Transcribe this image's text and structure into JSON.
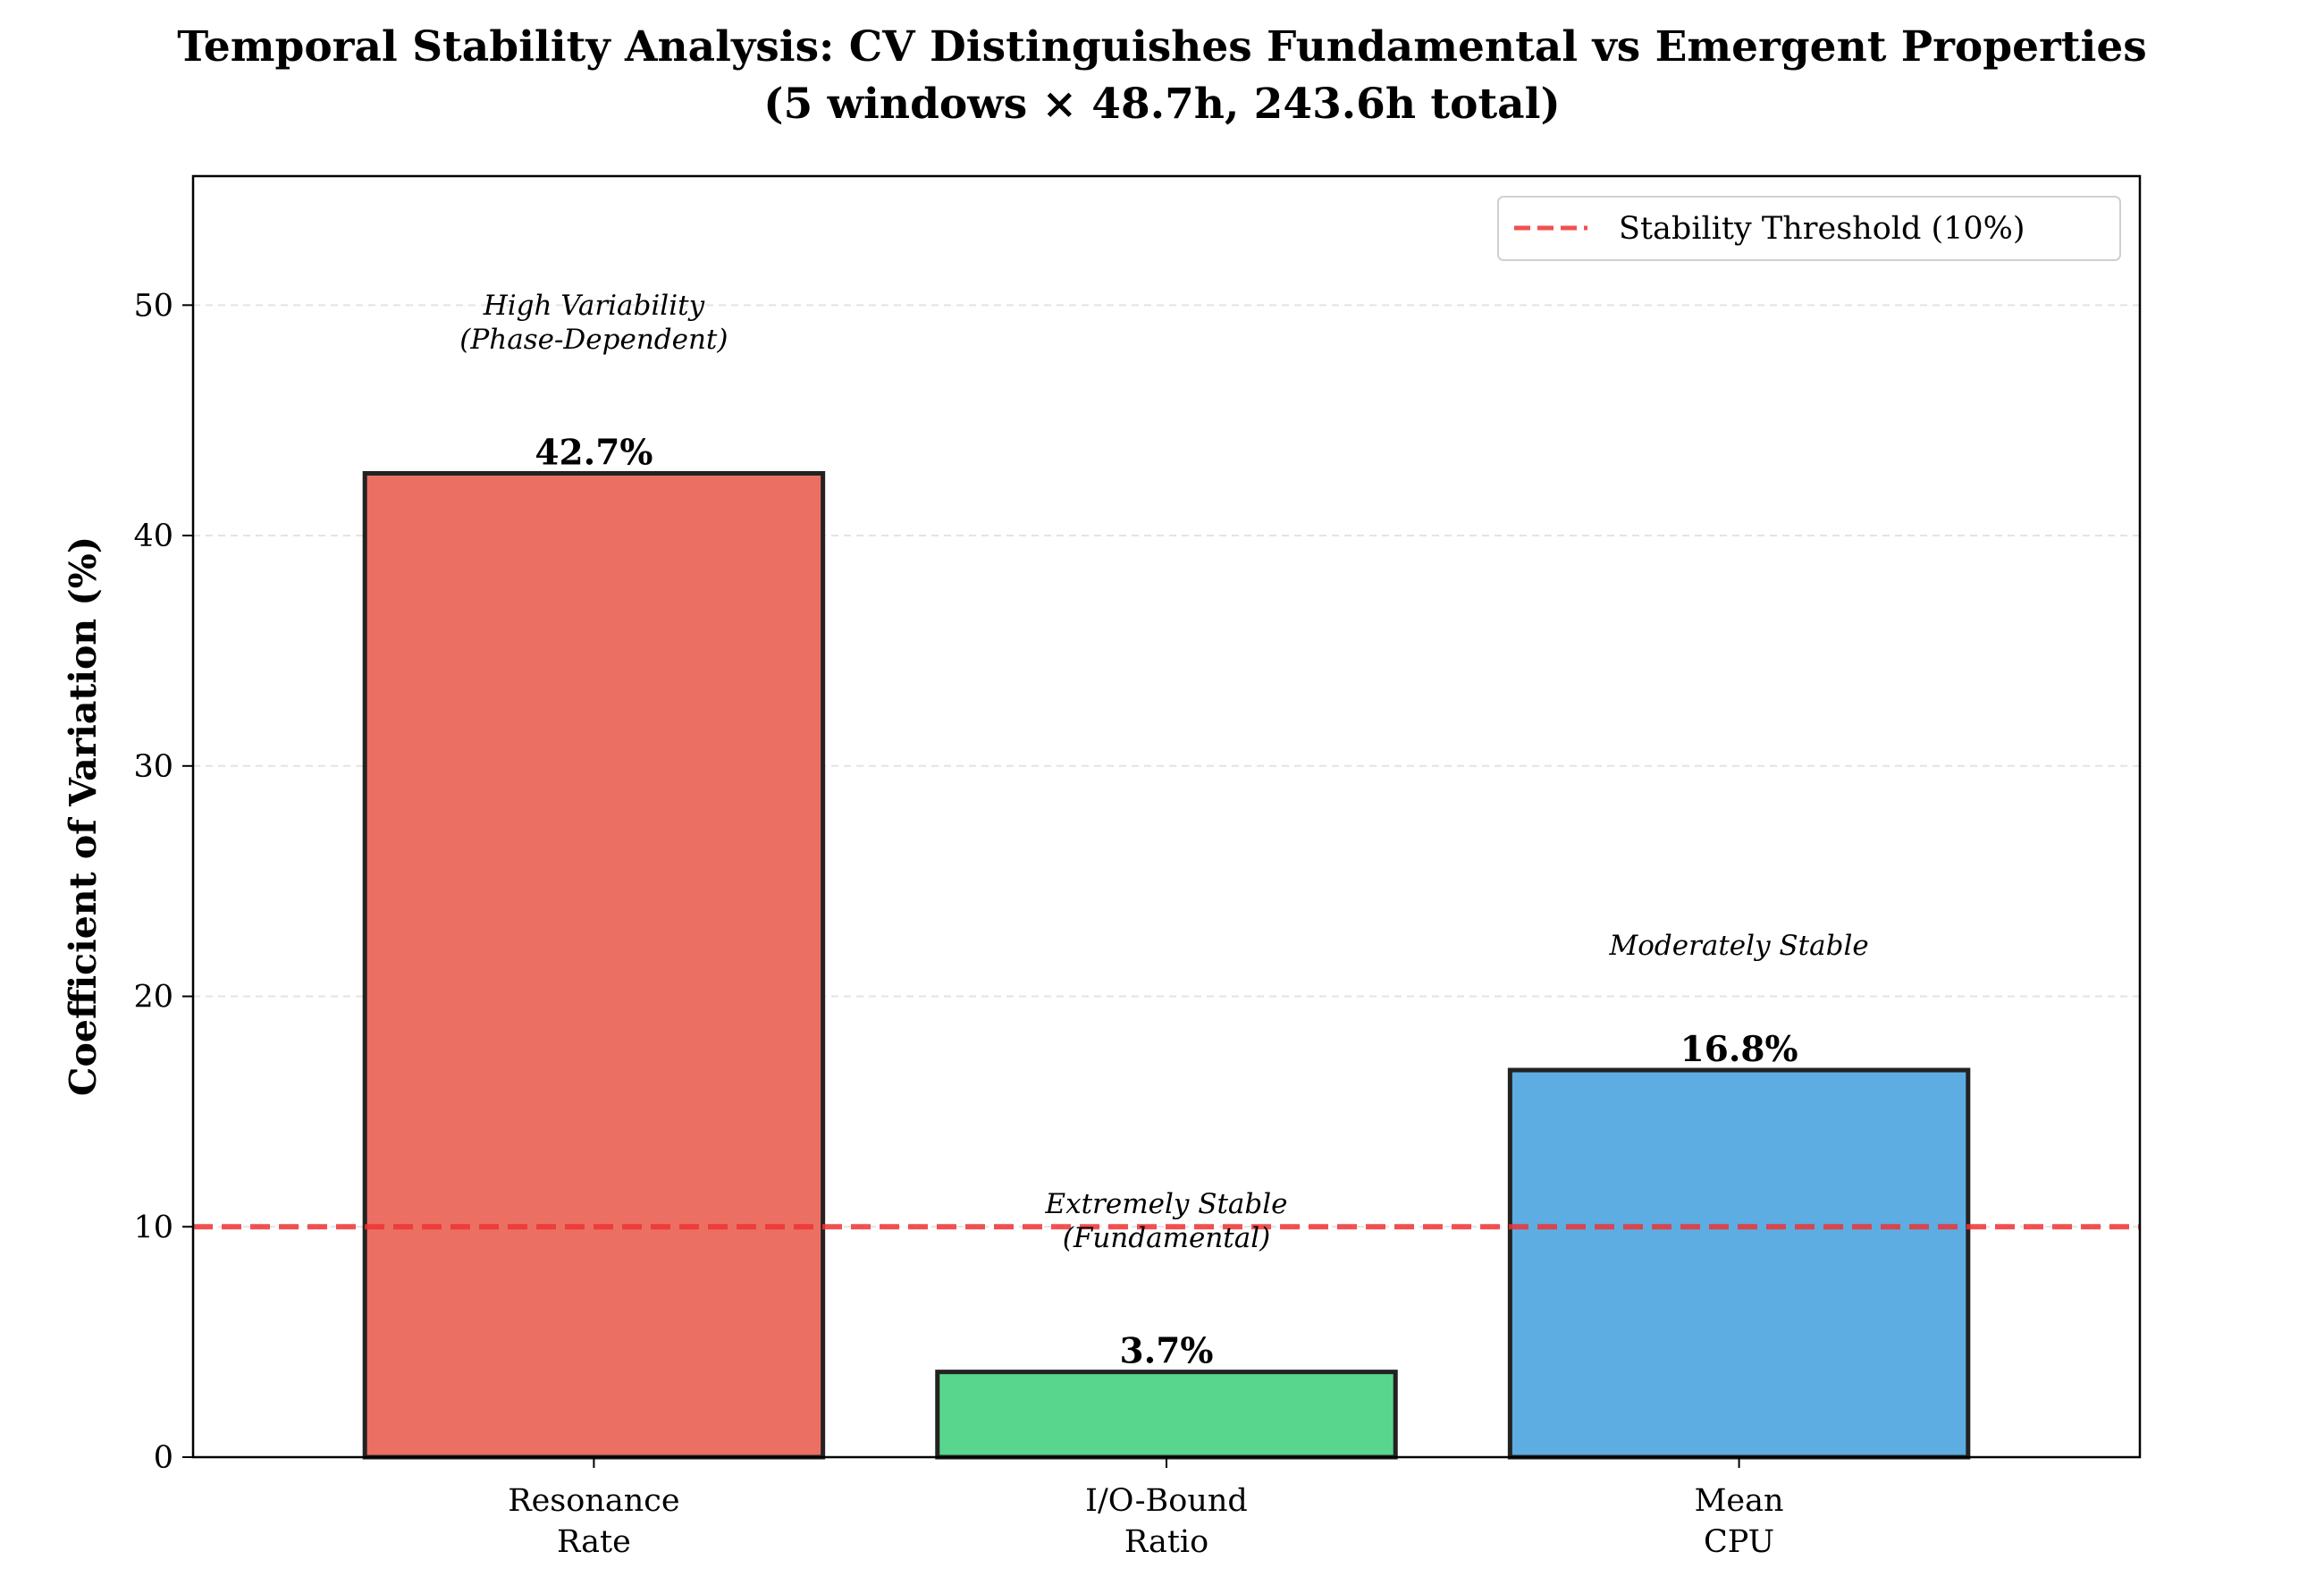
{
  "chart_data": {
    "type": "bar",
    "title": "Temporal Stability Analysis: CV Distinguishes Fundamental vs Emergent Properties",
    "subtitle": "(5 windows × 48.7h, 243.6h total)",
    "xlabel": "",
    "ylabel": "Coefficient of Variation (%)",
    "ylim": [
      0,
      55.6
    ],
    "yticks": [
      0,
      10,
      20,
      30,
      40,
      50
    ],
    "grid": "y-dashed",
    "categories": [
      [
        "Resonance",
        "Rate"
      ],
      [
        "I/O-Bound",
        "Ratio"
      ],
      [
        "Mean",
        "CPU"
      ]
    ],
    "values": [
      42.7,
      3.7,
      16.8
    ],
    "value_labels": [
      "42.7%",
      "3.7%",
      "16.8%"
    ],
    "colors": [
      "#eb7063",
      "#58d68d",
      "#5dade2"
    ],
    "bar_edge_color": "#222222",
    "annotations": [
      {
        "lines": [
          "High Variability",
          "(Phase-Dependent)"
        ],
        "category_index": 0,
        "y": 48.5
      },
      {
        "lines": [
          "Extremely Stable",
          "(Fundamental)"
        ],
        "category_index": 1,
        "y": 9.5
      },
      {
        "lines": [
          "Moderately Stable"
        ],
        "category_index": 2,
        "y": 22.2
      }
    ],
    "threshold": {
      "value": 10,
      "label": "Stability Threshold (10%)",
      "color": "#ee3333",
      "style": "dashed"
    },
    "legend": {
      "position": "top-right",
      "entries": [
        "Stability Threshold (10%)"
      ]
    }
  }
}
